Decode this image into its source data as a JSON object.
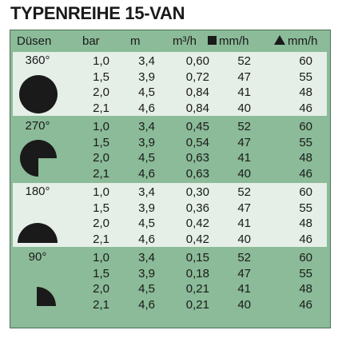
{
  "title": "TYPENREIHE 15-VAN",
  "headers": {
    "nozzles": "Düsen",
    "bar": "bar",
    "m": "m",
    "flow": "m³/h",
    "square": "mm/h",
    "triangle": "mm/h"
  },
  "groups": [
    {
      "label": "360°",
      "shape": "full-circle",
      "rows": [
        {
          "bar": "1,0",
          "m": "3,4",
          "flow": "0,60",
          "square": "52",
          "triangle": "60"
        },
        {
          "bar": "1,5",
          "m": "3,9",
          "flow": "0,72",
          "square": "47",
          "triangle": "55"
        },
        {
          "bar": "2,0",
          "m": "4,5",
          "flow": "0,84",
          "square": "41",
          "triangle": "48"
        },
        {
          "bar": "2,1",
          "m": "4,6",
          "flow": "0,84",
          "square": "40",
          "triangle": "46"
        }
      ]
    },
    {
      "label": "270°",
      "shape": "three-quarter-circle",
      "rows": [
        {
          "bar": "1,0",
          "m": "3,4",
          "flow": "0,45",
          "square": "52",
          "triangle": "60"
        },
        {
          "bar": "1,5",
          "m": "3,9",
          "flow": "0,54",
          "square": "47",
          "triangle": "55"
        },
        {
          "bar": "2,0",
          "m": "4,5",
          "flow": "0,63",
          "square": "41",
          "triangle": "48"
        },
        {
          "bar": "2,1",
          "m": "4,6",
          "flow": "0,63",
          "square": "40",
          "triangle": "46"
        }
      ]
    },
    {
      "label": "180°",
      "shape": "half-circle",
      "rows": [
        {
          "bar": "1,0",
          "m": "3,4",
          "flow": "0,30",
          "square": "52",
          "triangle": "60"
        },
        {
          "bar": "1,5",
          "m": "3,9",
          "flow": "0,36",
          "square": "47",
          "triangle": "55"
        },
        {
          "bar": "2,0",
          "m": "4,5",
          "flow": "0,42",
          "square": "41",
          "triangle": "48"
        },
        {
          "bar": "2,1",
          "m": "4,6",
          "flow": "0,42",
          "square": "40",
          "triangle": "46"
        }
      ]
    },
    {
      "label": "90°",
      "shape": "quarter-circle",
      "rows": [
        {
          "bar": "1,0",
          "m": "3,4",
          "flow": "0,15",
          "square": "52",
          "triangle": "60"
        },
        {
          "bar": "1,5",
          "m": "3,9",
          "flow": "0,18",
          "square": "47",
          "triangle": "55"
        },
        {
          "bar": "2,0",
          "m": "4,5",
          "flow": "0,21",
          "square": "41",
          "triangle": "48"
        },
        {
          "bar": "2,1",
          "m": "4,6",
          "flow": "0,21",
          "square": "40",
          "triangle": "46"
        }
      ]
    }
  ],
  "colors": {
    "light_band": "#e5efe7",
    "dark_band": "#8bbb98",
    "border": "#4e6e58",
    "ink": "#1a1a1a"
  }
}
